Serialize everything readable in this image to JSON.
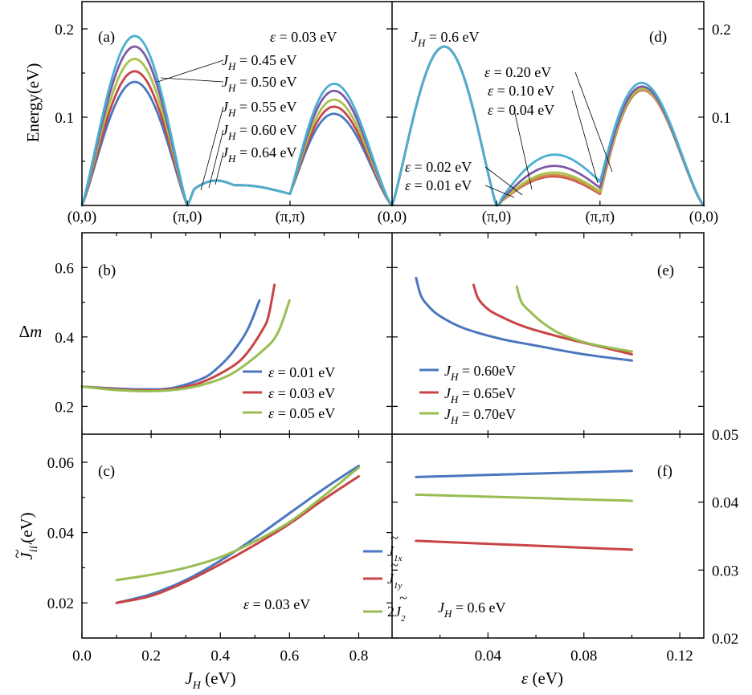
{
  "colors": {
    "blue": "#4a77be",
    "red": "#c84446",
    "green": "#98bd52",
    "purple": "#7f5aa6",
    "cyan": "#4bafd0",
    "olive": "#a8c24a",
    "orange": "#cf8648"
  },
  "chart_data": [
    {
      "panel": "(a)",
      "type": "line",
      "ylabel": "Energy(eV)",
      "x_ticks": [
        "(0,0)",
        "(π,0)",
        "(π,π)",
        "(0,0)"
      ],
      "ylim": [
        0,
        0.2
      ],
      "y_ticks": [
        "0.1",
        "0.2"
      ],
      "annotation": "ε = 0.03 eV",
      "series": [
        {
          "name": "J_H = 0.45 eV",
          "color": "cyan",
          "peak1": 0.192,
          "peak2": 0.13
        },
        {
          "name": "J_H = 0.50 eV",
          "color": "purple",
          "peak1": 0.18,
          "peak2": 0.122
        },
        {
          "name": "J_H = 0.55 eV",
          "color": "olive",
          "peak1": 0.166,
          "peak2": 0.112
        },
        {
          "name": "J_H = 0.60 eV",
          "color": "red",
          "peak1": 0.152,
          "peak2": 0.104
        },
        {
          "name": "J_H = 0.64 eV",
          "color": "blue",
          "peak1": 0.14,
          "peak2": 0.096
        }
      ]
    },
    {
      "panel": "(d)",
      "type": "line",
      "x_ticks": [
        "(0,0)",
        "(π,0)",
        "(π,π)",
        "(0,0)"
      ],
      "ylim": [
        0,
        0.2
      ],
      "y_ticks": [
        "0.1",
        "0.2"
      ],
      "annotation": "J_H = 0.6 eV",
      "series": [
        {
          "name": "ε = 0.20 eV",
          "color": "cyan",
          "mid": 0.048,
          "dip": 0.027
        },
        {
          "name": "ε = 0.10 eV",
          "color": "purple",
          "mid": 0.038,
          "dip": 0.02
        },
        {
          "name": "ε = 0.04 eV",
          "color": "olive",
          "mid": 0.032,
          "dip": 0.016
        },
        {
          "name": "ε = 0.02 eV",
          "color": "orange",
          "mid": 0.03,
          "dip": 0.014
        },
        {
          "name": "ε = 0.01 eV",
          "color": "red",
          "mid": 0.029,
          "dip": 0.013
        }
      ]
    },
    {
      "panel": "(b)",
      "type": "line",
      "ylabel": "Δm",
      "xlim": [
        0,
        1.0
      ],
      "ylim": [
        0.12,
        0.7
      ],
      "y_ticks": [
        0.2,
        0.4,
        0.6
      ],
      "series": [
        {
          "name": "ε = 0.01 eV",
          "color": "blue",
          "x": [
            0.0,
            0.1,
            0.2,
            0.3,
            0.4,
            0.45,
            0.5,
            0.55,
            0.59
          ],
          "y": [
            0.257,
            0.252,
            0.249,
            0.253,
            0.28,
            0.31,
            0.355,
            0.42,
            0.505
          ]
        },
        {
          "name": "ε = 0.03 eV",
          "color": "red",
          "x": [
            0.0,
            0.1,
            0.2,
            0.3,
            0.4,
            0.5,
            0.55,
            0.6,
            0.62,
            0.64
          ],
          "y": [
            0.257,
            0.25,
            0.246,
            0.25,
            0.27,
            0.315,
            0.355,
            0.42,
            0.46,
            0.55
          ]
        },
        {
          "name": "ε = 0.05 eV",
          "color": "green",
          "x": [
            0.0,
            0.1,
            0.2,
            0.3,
            0.4,
            0.5,
            0.6,
            0.65,
            0.69
          ],
          "y": [
            0.257,
            0.248,
            0.244,
            0.247,
            0.262,
            0.295,
            0.36,
            0.41,
            0.505
          ]
        }
      ]
    },
    {
      "panel": "(e)",
      "type": "line",
      "xlim": [
        0,
        0.13
      ],
      "ylim": [
        0.12,
        0.7
      ],
      "series": [
        {
          "name": "J_H = 0.60eV",
          "color": "blue",
          "x": [
            0.01,
            0.012,
            0.015,
            0.02,
            0.03,
            0.045,
            0.06,
            0.08,
            0.1
          ],
          "y": [
            0.57,
            0.52,
            0.49,
            0.46,
            0.425,
            0.395,
            0.375,
            0.35,
            0.332
          ]
        },
        {
          "name": "J_H = 0.65eV",
          "color": "red",
          "x": [
            0.034,
            0.036,
            0.04,
            0.045,
            0.055,
            0.07,
            0.085,
            0.1
          ],
          "y": [
            0.55,
            0.51,
            0.48,
            0.46,
            0.43,
            0.4,
            0.375,
            0.35
          ]
        },
        {
          "name": "J_H = 0.70eV",
          "color": "green",
          "x": [
            0.052,
            0.054,
            0.058,
            0.063,
            0.07,
            0.08,
            0.09,
            0.1
          ],
          "y": [
            0.545,
            0.5,
            0.47,
            0.44,
            0.41,
            0.385,
            0.37,
            0.358
          ]
        }
      ]
    },
    {
      "panel": "(c)",
      "type": "line",
      "ylabel": "J̃_ii'(eV)",
      "xlabel": "J_H(eV)",
      "xlim": [
        0,
        1.0
      ],
      "ylim": [
        0.01,
        0.068
      ],
      "x_ticks": [
        "0.0",
        "0.2",
        "0.4",
        "0.6",
        "0.8"
      ],
      "y_ticks": [
        0.02,
        0.04,
        0.06
      ],
      "annotation": "ε = 0.03 eV",
      "series": [
        {
          "name": "J̃_1x",
          "color": "blue",
          "x": [
            0.1,
            0.2,
            0.3,
            0.4,
            0.5,
            0.6,
            0.7,
            0.8
          ],
          "y": [
            0.02,
            0.0225,
            0.0265,
            0.032,
            0.0385,
            0.0455,
            0.0525,
            0.059
          ]
        },
        {
          "name": "J̃_1y",
          "color": "red",
          "x": [
            0.1,
            0.2,
            0.3,
            0.4,
            0.5,
            0.6,
            0.7,
            0.8
          ],
          "y": [
            0.02,
            0.022,
            0.026,
            0.031,
            0.0365,
            0.0425,
            0.0495,
            0.056
          ]
        },
        {
          "name": "2J̃_2",
          "color": "green",
          "x": [
            0.1,
            0.2,
            0.3,
            0.4,
            0.5,
            0.6,
            0.7,
            0.8
          ],
          "y": [
            0.0265,
            0.028,
            0.03,
            0.033,
            0.0375,
            0.043,
            0.0505,
            0.0585
          ]
        }
      ]
    },
    {
      "panel": "(f)",
      "type": "line",
      "xlabel": "ε (eV)",
      "xlim": [
        0,
        0.13
      ],
      "ylim": [
        0.02,
        0.05
      ],
      "x_ticks": [
        "0.04",
        "0.08",
        "0.12"
      ],
      "y_ticks": [
        "0.02",
        "0.03",
        "0.04",
        "0.05"
      ],
      "annotation": "J_H = 0.6 eV",
      "series": [
        {
          "name": "J̃_1x",
          "color": "blue",
          "x": [
            0.01,
            0.1
          ],
          "y": [
            0.0437,
            0.0446
          ]
        },
        {
          "name": "2J̃_2",
          "color": "green",
          "x": [
            0.01,
            0.1
          ],
          "y": [
            0.0411,
            0.0402
          ]
        },
        {
          "name": "J̃_1y",
          "color": "red",
          "x": [
            0.01,
            0.1
          ],
          "y": [
            0.0343,
            0.033
          ]
        }
      ]
    }
  ],
  "text": {
    "axis_ylabel_energy": "Energy(eV)",
    "axis_ylabel_dm": "Δm",
    "panel_a": "(a)",
    "panel_b": "(b)",
    "panel_c": "(c)",
    "panel_d": "(d)",
    "panel_e": "(e)",
    "panel_f": "(f)",
    "eps_003": "ε = 0.03 eV",
    "jh_06": "= 0.6 eV",
    "tick_00": "(0,0)",
    "tick_pi0": "(π,0)",
    "tick_pipi": "(π,π)"
  }
}
